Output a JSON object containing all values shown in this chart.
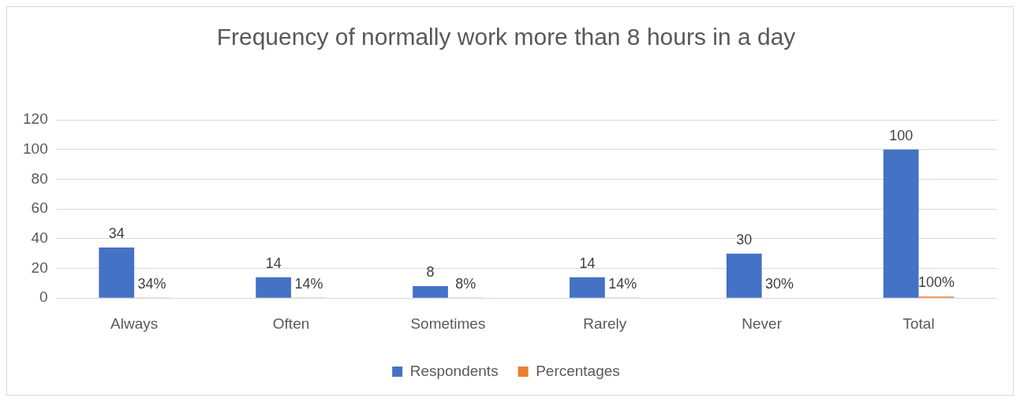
{
  "chart_data": {
    "type": "bar",
    "title": "Frequency of normally work more than 8 hours in a day",
    "categories": [
      "Always",
      "Often",
      "Sometimes",
      "Rarely",
      "Never",
      "Total"
    ],
    "series": [
      {
        "name": "Respondents",
        "color": "#4472c4",
        "values": [
          34,
          14,
          8,
          14,
          30,
          100
        ],
        "value_labels": [
          "34",
          "14",
          "8",
          "14",
          "30",
          "100"
        ]
      },
      {
        "name": "Percentages",
        "color": "#ed7d31",
        "values": [
          0.34,
          0.14,
          0.08,
          0.14,
          0.3,
          1
        ],
        "value_labels": [
          "34%",
          "14%",
          "8%",
          "14%",
          "30%",
          "100%"
        ]
      }
    ],
    "ylim": [
      0,
      120
    ],
    "yticks": [
      0,
      20,
      40,
      60,
      80,
      100,
      120
    ],
    "grid": "y",
    "legend": "bottom"
  }
}
